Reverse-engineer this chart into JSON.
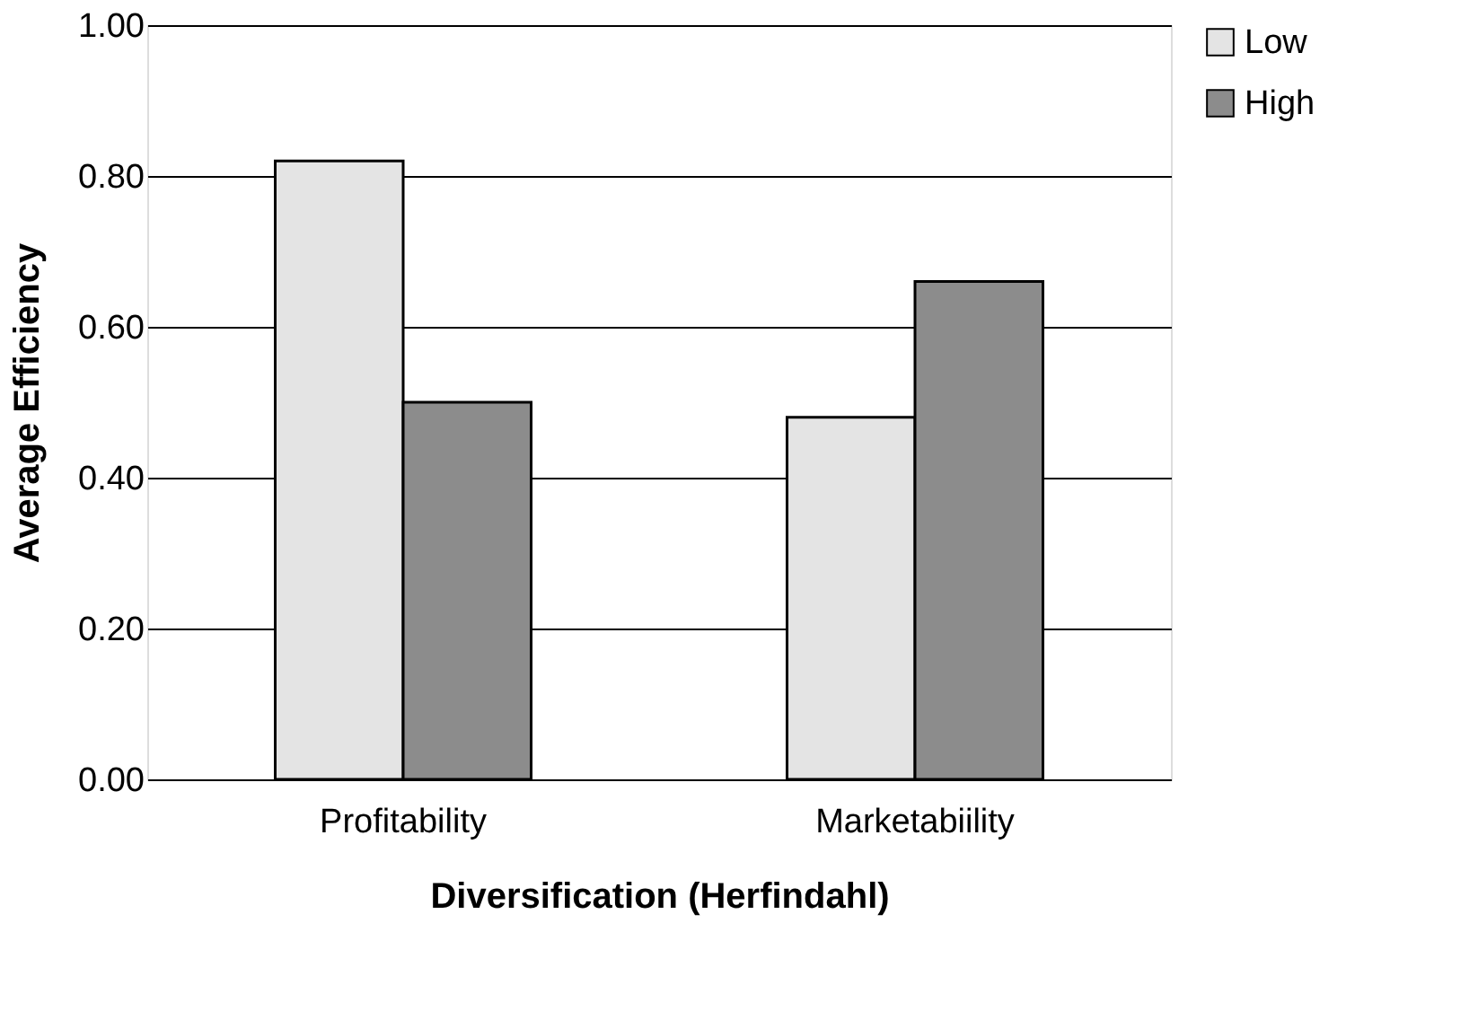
{
  "chart_data": {
    "type": "bar",
    "xlabel": "Diversification (Herfindahl)",
    "ylabel": "Average Efficiency",
    "categories": [
      "Profitability",
      "Marketabiility"
    ],
    "series": [
      {
        "name": "Low",
        "color": "#e4e4e4",
        "values": [
          0.82,
          0.48
        ]
      },
      {
        "name": "High",
        "color": "#8c8c8c",
        "values": [
          0.5,
          0.66
        ]
      }
    ],
    "ylim": [
      0,
      1
    ],
    "yticks": [
      {
        "value": 0,
        "label": "0.00"
      },
      {
        "value": 0.2,
        "label": "0.20"
      },
      {
        "value": 0.4,
        "label": "0.40"
      },
      {
        "value": 0.6,
        "label": "0.60"
      },
      {
        "value": 0.8,
        "label": "0.80"
      },
      {
        "value": 1,
        "label": "1.00"
      }
    ],
    "grid": "y",
    "legend": "right"
  }
}
